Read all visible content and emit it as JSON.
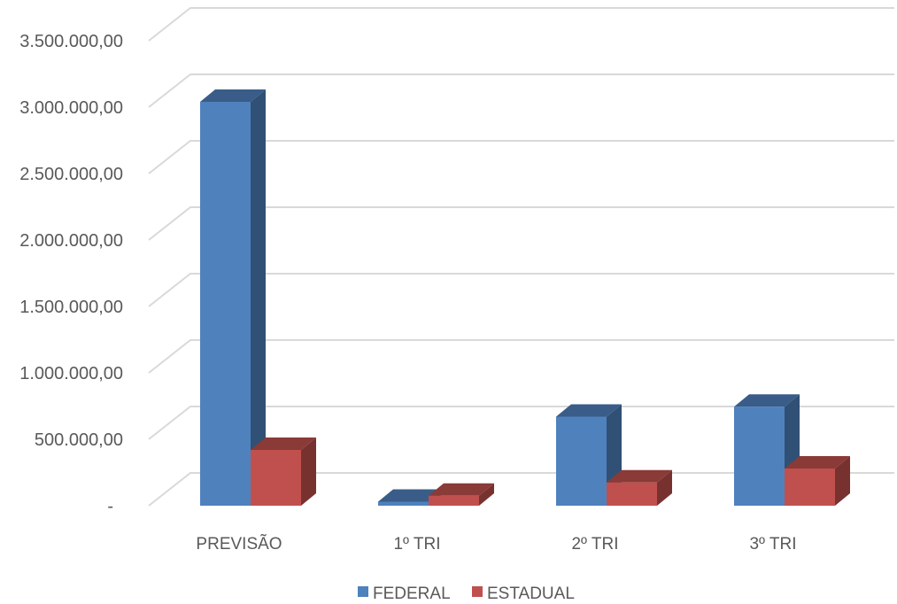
{
  "chart_data": {
    "type": "bar",
    "categories": [
      "PREVISÃO",
      "1º TRI",
      "2º TRI",
      "3º TRI"
    ],
    "series": [
      {
        "name": "FEDERAL",
        "values": [
          3040000,
          30000,
          670000,
          745000
        ],
        "color": "#4f81bd"
      },
      {
        "name": "ESTADUAL",
        "values": [
          420000,
          75000,
          175000,
          280000
        ],
        "color": "#c0504d"
      }
    ],
    "ylim": [
      0,
      3500000
    ],
    "yticks": [
      {
        "value": 0,
        "label": "-"
      },
      {
        "value": 500000,
        "label": "500.000,00"
      },
      {
        "value": 1000000,
        "label": "1.000.000,00"
      },
      {
        "value": 1500000,
        "label": "1.500.000,00"
      },
      {
        "value": 2000000,
        "label": "2.000.000,00"
      },
      {
        "value": 2500000,
        "label": "2.500.000,00"
      },
      {
        "value": 3000000,
        "label": "3.000.000,00"
      },
      {
        "value": 3500000,
        "label": "3.500.000,00"
      }
    ],
    "grid": true,
    "legend_position": "bottom",
    "style": "3d-clustered-column"
  }
}
